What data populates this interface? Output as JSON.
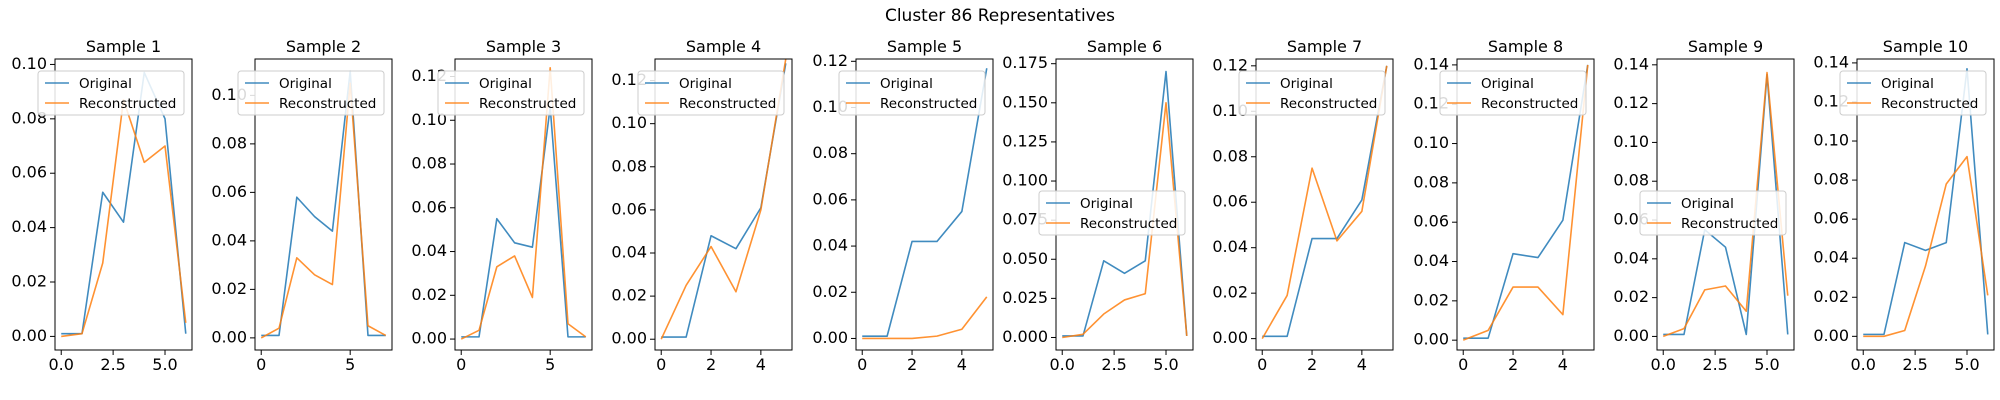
{
  "figure": {
    "suptitle": "Cluster 86 Representatives"
  },
  "colors": {
    "original": "#1f77b4",
    "reconstructed": "#ff7f0e"
  },
  "chart_data": [
    {
      "type": "line",
      "title": "Sample 1",
      "x": [
        0,
        1,
        2,
        3,
        4,
        5,
        6
      ],
      "xlim": [
        -0.3,
        6.3
      ],
      "ylim": [
        -0.005,
        0.102
      ],
      "xticks": [
        "0.0",
        "2.5",
        "5.0"
      ],
      "xtickvals": [
        0,
        2.5,
        5
      ],
      "yticks": [
        "0.00",
        "0.02",
        "0.04",
        "0.06",
        "0.08",
        "0.10"
      ],
      "ytickvals": [
        0,
        0.02,
        0.04,
        0.06,
        0.08,
        0.1
      ],
      "legend": "top-left",
      "series": [
        {
          "name": "Original",
          "values": [
            0.001,
            0.001,
            0.053,
            0.042,
            0.097,
            0.08,
            0.001
          ]
        },
        {
          "name": "Reconstructed",
          "values": [
            0.0,
            0.001,
            0.027,
            0.087,
            0.064,
            0.07,
            0.005
          ]
        }
      ]
    },
    {
      "type": "line",
      "title": "Sample 2",
      "x": [
        0,
        1,
        2,
        3,
        4,
        5,
        6,
        7
      ],
      "xlim": [
        -0.35,
        7.35
      ],
      "ylim": [
        -0.005,
        0.115
      ],
      "xticks": [
        "0",
        "5"
      ],
      "xtickvals": [
        0,
        5
      ],
      "yticks": [
        "0.00",
        "0.02",
        "0.04",
        "0.06",
        "0.08",
        "0.10"
      ],
      "ytickvals": [
        0,
        0.02,
        0.04,
        0.06,
        0.08,
        0.1
      ],
      "legend": "top-left",
      "series": [
        {
          "name": "Original",
          "values": [
            0.001,
            0.001,
            0.058,
            0.05,
            0.044,
            0.11,
            0.001,
            0.001
          ]
        },
        {
          "name": "Reconstructed",
          "values": [
            0.0,
            0.004,
            0.033,
            0.026,
            0.022,
            0.105,
            0.005,
            0.001
          ]
        }
      ]
    },
    {
      "type": "line",
      "title": "Sample 3",
      "x": [
        0,
        1,
        2,
        3,
        4,
        5,
        6,
        7
      ],
      "xlim": [
        -0.35,
        7.35
      ],
      "ylim": [
        -0.005,
        0.128
      ],
      "xticks": [
        "0",
        "5"
      ],
      "xtickvals": [
        0,
        5
      ],
      "yticks": [
        "0.00",
        "0.02",
        "0.04",
        "0.06",
        "0.08",
        "0.10",
        "0.12"
      ],
      "ytickvals": [
        0,
        0.02,
        0.04,
        0.06,
        0.08,
        0.1,
        0.12
      ],
      "legend": "top-left",
      "series": [
        {
          "name": "Original",
          "values": [
            0.001,
            0.001,
            0.055,
            0.044,
            0.042,
            0.106,
            0.001,
            0.001
          ]
        },
        {
          "name": "Reconstructed",
          "values": [
            0.0,
            0.004,
            0.033,
            0.038,
            0.019,
            0.124,
            0.007,
            0.001
          ]
        }
      ]
    },
    {
      "type": "line",
      "title": "Sample 4",
      "x": [
        0,
        1,
        2,
        3,
        4,
        5
      ],
      "xlim": [
        -0.25,
        5.25
      ],
      "ylim": [
        -0.005,
        0.13
      ],
      "xticks": [
        "0",
        "2",
        "4"
      ],
      "xtickvals": [
        0,
        2,
        4
      ],
      "yticks": [
        "0.00",
        "0.02",
        "0.04",
        "0.06",
        "0.08",
        "0.10",
        "0.12"
      ],
      "ytickvals": [
        0,
        0.02,
        0.04,
        0.06,
        0.08,
        0.1,
        0.12
      ],
      "legend": "top-left",
      "series": [
        {
          "name": "Original",
          "values": [
            0.001,
            0.001,
            0.048,
            0.042,
            0.061,
            0.128
          ]
        },
        {
          "name": "Reconstructed",
          "values": [
            0.0,
            0.025,
            0.043,
            0.022,
            0.06,
            0.13
          ]
        }
      ]
    },
    {
      "type": "line",
      "title": "Sample 5",
      "x": [
        0,
        1,
        2,
        3,
        4,
        5
      ],
      "xlim": [
        -0.25,
        5.25
      ],
      "ylim": [
        -0.005,
        0.121
      ],
      "xticks": [
        "0",
        "2",
        "4"
      ],
      "xtickvals": [
        0,
        2,
        4
      ],
      "yticks": [
        "0.00",
        "0.02",
        "0.04",
        "0.06",
        "0.08",
        "0.10",
        "0.12"
      ],
      "ytickvals": [
        0,
        0.02,
        0.04,
        0.06,
        0.08,
        0.1,
        0.12
      ],
      "legend": "top-left",
      "series": [
        {
          "name": "Original",
          "values": [
            0.001,
            0.001,
            0.042,
            0.042,
            0.055,
            0.117
          ]
        },
        {
          "name": "Reconstructed",
          "values": [
            0.0,
            0.0,
            0.0,
            0.001,
            0.004,
            0.018
          ]
        }
      ]
    },
    {
      "type": "line",
      "title": "Sample 6",
      "x": [
        0,
        1,
        2,
        3,
        4,
        5,
        6
      ],
      "xlim": [
        -0.3,
        6.3
      ],
      "ylim": [
        -0.008,
        0.178
      ],
      "xticks": [
        "0.0",
        "2.5",
        "5.0"
      ],
      "xtickvals": [
        0,
        2.5,
        5
      ],
      "yticks": [
        "0.000",
        "0.025",
        "0.050",
        "0.075",
        "0.100",
        "0.125",
        "0.150",
        "0.175"
      ],
      "ytickvals": [
        0,
        0.025,
        0.05,
        0.075,
        0.1,
        0.125,
        0.15,
        0.175
      ],
      "legend": "center-left",
      "series": [
        {
          "name": "Original",
          "values": [
            0.001,
            0.001,
            0.049,
            0.041,
            0.049,
            0.17,
            0.001
          ]
        },
        {
          "name": "Reconstructed",
          "values": [
            0.0,
            0.002,
            0.015,
            0.024,
            0.028,
            0.15,
            0.001
          ]
        }
      ]
    },
    {
      "type": "line",
      "title": "Sample 7",
      "x": [
        0,
        1,
        2,
        3,
        4,
        5
      ],
      "xlim": [
        -0.25,
        5.25
      ],
      "ylim": [
        -0.005,
        0.123
      ],
      "xticks": [
        "0",
        "2",
        "4"
      ],
      "xtickvals": [
        0,
        2,
        4
      ],
      "yticks": [
        "0.00",
        "0.02",
        "0.04",
        "0.06",
        "0.08",
        "0.10",
        "0.12"
      ],
      "ytickvals": [
        0,
        0.02,
        0.04,
        0.06,
        0.08,
        0.1,
        0.12
      ],
      "legend": "top-left",
      "series": [
        {
          "name": "Original",
          "values": [
            0.001,
            0.001,
            0.044,
            0.044,
            0.061,
            0.12
          ]
        },
        {
          "name": "Reconstructed",
          "values": [
            0.0,
            0.019,
            0.075,
            0.043,
            0.056,
            0.12
          ]
        }
      ]
    },
    {
      "type": "line",
      "title": "Sample 8",
      "x": [
        0,
        1,
        2,
        3,
        4,
        5
      ],
      "xlim": [
        -0.25,
        5.25
      ],
      "ylim": [
        -0.005,
        0.143
      ],
      "xticks": [
        "0",
        "2",
        "4"
      ],
      "xtickvals": [
        0,
        2,
        4
      ],
      "yticks": [
        "0.00",
        "0.02",
        "0.04",
        "0.06",
        "0.08",
        "0.10",
        "0.12",
        "0.14"
      ],
      "ytickvals": [
        0,
        0.02,
        0.04,
        0.06,
        0.08,
        0.1,
        0.12,
        0.14
      ],
      "legend": "top-left",
      "series": [
        {
          "name": "Original",
          "values": [
            0.001,
            0.001,
            0.044,
            0.042,
            0.061,
            0.14
          ]
        },
        {
          "name": "Reconstructed",
          "values": [
            0.0,
            0.005,
            0.027,
            0.027,
            0.013,
            0.14
          ]
        }
      ]
    },
    {
      "type": "line",
      "title": "Sample 9",
      "x": [
        0,
        1,
        2,
        3,
        4,
        5,
        6
      ],
      "xlim": [
        -0.3,
        6.3
      ],
      "ylim": [
        -0.007,
        0.143
      ],
      "xticks": [
        "0.0",
        "2.5",
        "5.0"
      ],
      "xtickvals": [
        0,
        2.5,
        5
      ],
      "yticks": [
        "0.00",
        "0.02",
        "0.04",
        "0.06",
        "0.08",
        "0.10",
        "0.12",
        "0.14"
      ],
      "ytickvals": [
        0,
        0.02,
        0.04,
        0.06,
        0.08,
        0.1,
        0.12,
        0.14
      ],
      "legend": "center-left",
      "series": [
        {
          "name": "Original",
          "values": [
            0.001,
            0.001,
            0.055,
            0.046,
            0.001,
            0.135,
            0.001
          ]
        },
        {
          "name": "Reconstructed",
          "values": [
            0.0,
            0.004,
            0.024,
            0.026,
            0.013,
            0.136,
            0.021
          ]
        }
      ]
    },
    {
      "type": "line",
      "title": "Sample 10",
      "x": [
        0,
        1,
        2,
        3,
        4,
        5,
        6
      ],
      "xlim": [
        -0.3,
        6.3
      ],
      "ylim": [
        -0.007,
        0.142
      ],
      "xticks": [
        "0.0",
        "2.5",
        "5.0"
      ],
      "xtickvals": [
        0,
        2.5,
        5
      ],
      "yticks": [
        "0.00",
        "0.02",
        "0.04",
        "0.06",
        "0.08",
        "0.10",
        "0.12",
        "0.14"
      ],
      "ytickvals": [
        0,
        0.02,
        0.04,
        0.06,
        0.08,
        0.1,
        0.12,
        0.14
      ],
      "legend": "top-left",
      "series": [
        {
          "name": "Original",
          "values": [
            0.001,
            0.001,
            0.048,
            0.044,
            0.048,
            0.137,
            0.001
          ]
        },
        {
          "name": "Reconstructed",
          "values": [
            0.0,
            0.0,
            0.003,
            0.036,
            0.078,
            0.092,
            0.021
          ]
        }
      ]
    }
  ]
}
